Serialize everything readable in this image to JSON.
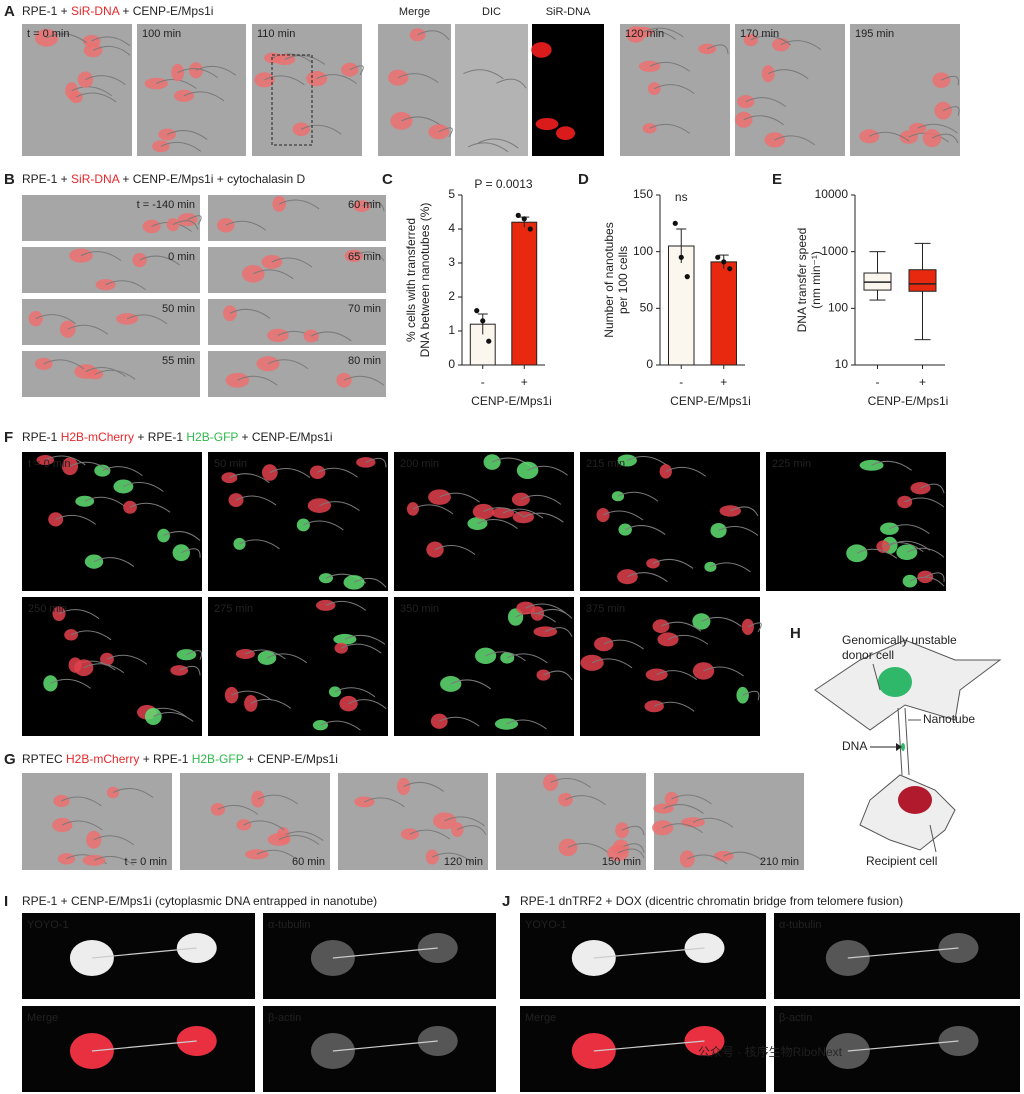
{
  "panels": {
    "A": {
      "letter": "A",
      "title": [
        {
          "text": "RPE-1 + "
        },
        {
          "text": "SiR-DNA",
          "color": "#e8282b"
        },
        {
          "text": " + CENP-E/Mps1i"
        }
      ],
      "frames": [
        {
          "label": "t = 0 min"
        },
        {
          "label": "100 min"
        },
        {
          "label": "110 min"
        },
        {
          "label": "Merge"
        },
        {
          "label": "DIC"
        },
        {
          "label": "SiR-DNA",
          "color": "#e8282b"
        },
        {
          "label": "120 min"
        },
        {
          "label": "170 min"
        },
        {
          "label": "195 min"
        }
      ]
    },
    "B": {
      "letter": "B",
      "title": [
        {
          "text": "RPE-1 + "
        },
        {
          "text": "SiR-DNA",
          "color": "#e8282b"
        },
        {
          "text": " + CENP-E/Mps1i + cytochalasin D"
        }
      ],
      "frames": [
        {
          "label": "t = -140 min"
        },
        {
          "label": "0 min"
        },
        {
          "label": "50 min"
        },
        {
          "label": "55 min"
        },
        {
          "label": "60 min"
        },
        {
          "label": "65 min"
        },
        {
          "label": "70 min"
        },
        {
          "label": "80 min"
        }
      ]
    },
    "C": {
      "letter": "C"
    },
    "D": {
      "letter": "D"
    },
    "E": {
      "letter": "E"
    },
    "F": {
      "letter": "F",
      "title": [
        {
          "text": "RPE-1 "
        },
        {
          "text": "H2B-mCherry",
          "color": "#e8282b"
        },
        {
          "text": " + RPE-1 "
        },
        {
          "text": "H2B-GFP",
          "color": "#2fb84a"
        },
        {
          "text": " + CENP-E/Mps1i"
        }
      ],
      "frames": [
        {
          "label": "t = 0 min"
        },
        {
          "label": "50 min"
        },
        {
          "label": "200 min"
        },
        {
          "label": "215 min"
        },
        {
          "label": "225 min"
        },
        {
          "label": "250 min"
        },
        {
          "label": "275 min"
        },
        {
          "label": "350 min"
        },
        {
          "label": "375 min"
        }
      ]
    },
    "G": {
      "letter": "G",
      "title": [
        {
          "text": "RPTEC "
        },
        {
          "text": "H2B-mCherry",
          "color": "#e8282b"
        },
        {
          "text": " + RPE-1 "
        },
        {
          "text": "H2B-GFP",
          "color": "#2fb84a"
        },
        {
          "text": " + CENP-E/Mps1i"
        }
      ],
      "frames": [
        {
          "label": "t = 0 min"
        },
        {
          "label": "60 min"
        },
        {
          "label": "120 min"
        },
        {
          "label": "150 min"
        },
        {
          "label": "210 min"
        }
      ]
    },
    "H": {
      "letter": "H",
      "donor": [
        "Genomically unstable",
        "donor cell"
      ],
      "nanotube": "Nanotube",
      "dna": "DNA",
      "recipient": "Recipient cell"
    },
    "I": {
      "letter": "I",
      "title": [
        {
          "text": "RPE-1 + CENP-E/Mps1i (cytoplasmic DNA entrapped in nanotube)"
        }
      ],
      "frames": [
        {
          "label": "YOYO-1",
          "color": "#e8282b"
        },
        {
          "label": "α-tubulin",
          "color": "#2a9df4"
        },
        {
          "label": "Merge",
          "color": "#ffffff"
        },
        {
          "label": "β-actin",
          "color": "#35c040"
        }
      ]
    },
    "J": {
      "letter": "J",
      "title": [
        {
          "text": "RPE-1 dnTRF2 + DOX (dicentric chromatin bridge from telomere fusion)"
        }
      ],
      "frames": [
        {
          "label": "YOYO-1",
          "color": "#e8282b"
        },
        {
          "label": "α-tubulin",
          "color": "#2a9df4"
        },
        {
          "label": "Merge",
          "color": "#ffffff"
        },
        {
          "label": "β-actin",
          "color": "#35c040"
        }
      ]
    }
  },
  "watermark": "公众号 · 核序生物RiboNext",
  "chart_data": [
    {
      "type": "bar",
      "categories": [
        "-",
        "+"
      ],
      "values": [
        1.2,
        4.2
      ],
      "errors": [
        0.3,
        0.15
      ],
      "points": [
        [
          1.6,
          1.3,
          0.7
        ],
        [
          4.4,
          4.3,
          4.0
        ]
      ],
      "colors": [
        "#fbf6ee",
        "#e8290f"
      ],
      "ylim": [
        0,
        5
      ],
      "yticks": [
        0,
        1,
        2,
        3,
        4,
        5
      ],
      "y_label": [
        "% cells with transferred",
        "DNA between nanotubes (%)"
      ],
      "x_label": "CENP-E/Mps1i",
      "annotation": "P = 0.0013"
    },
    {
      "type": "bar",
      "categories": [
        "-",
        "+"
      ],
      "values": [
        105,
        91
      ],
      "errors": [
        15,
        6
      ],
      "points": [
        [
          125,
          95,
          78
        ],
        [
          95,
          91,
          85
        ]
      ],
      "colors": [
        "#fbf6ee",
        "#e8290f"
      ],
      "ylim": [
        0,
        150
      ],
      "yticks": [
        0,
        50,
        100,
        150
      ],
      "y_label": [
        "Number of nanotubes",
        "per 100 cells"
      ],
      "x_label": "CENP-E/Mps1i",
      "annotation": "ns"
    },
    {
      "type": "box",
      "categories": [
        "-",
        "+"
      ],
      "boxes": [
        {
          "min": 140,
          "q1": 210,
          "median": 290,
          "q3": 420,
          "max": 1000
        },
        {
          "min": 28,
          "q1": 200,
          "median": 270,
          "q3": 480,
          "max": 1400
        }
      ],
      "colors": [
        "#fbf6ee",
        "#e8290f"
      ],
      "log_scale": true,
      "ylim": [
        10,
        10000
      ],
      "yticks": [
        10,
        100,
        1000,
        10000
      ],
      "y_label": [
        "DNA transfer speed",
        "(nm min⁻¹)"
      ],
      "x_label": "CENP-E/Mps1i"
    }
  ]
}
